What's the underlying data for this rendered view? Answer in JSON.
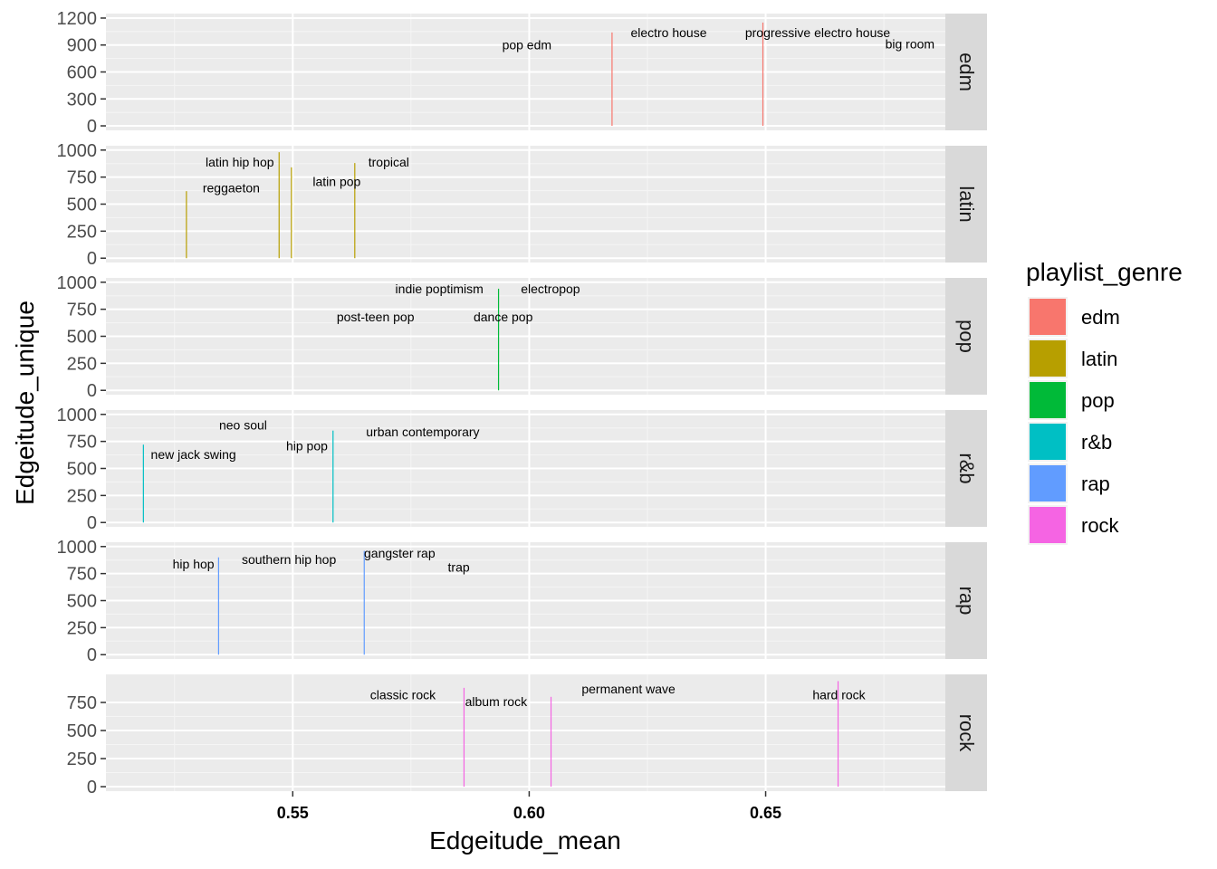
{
  "chart_data": {
    "type": "bar",
    "xlabel": "Edgeitude_mean",
    "ylabel": "Edgeitude_unique",
    "xlim": [
      0.5105,
      0.688
    ],
    "x_ticks": [
      0.55,
      0.6,
      0.65
    ],
    "x_tick_labels": [
      "0.55",
      "0.60",
      "0.65"
    ],
    "facet_by": "playlist_genre",
    "legend": {
      "title": "playlist_genre",
      "position": "right",
      "entries": [
        {
          "label": "edm",
          "color": "#F8766D"
        },
        {
          "label": "latin",
          "color": "#B79F00"
        },
        {
          "label": "pop",
          "color": "#00BA38"
        },
        {
          "label": "r&b",
          "color": "#00BFC4"
        },
        {
          "label": "rap",
          "color": "#619CFF"
        },
        {
          "label": "rock",
          "color": "#F564E3"
        }
      ]
    },
    "panels": [
      {
        "strip": "edm",
        "color": "#F8766D",
        "ylim": [
          -50,
          1250
        ],
        "y_ticks": [
          0,
          300,
          600,
          900,
          1200
        ],
        "bars": [
          {
            "x": 0.6175,
            "y": 1040
          },
          {
            "x": 0.6494,
            "y": 1150
          }
        ],
        "labels": [
          {
            "text": "electro house",
            "x": 0.6295,
            "y": 1040
          },
          {
            "text": "progressive electro house",
            "x": 0.661,
            "y": 1040
          },
          {
            "text": "pop edm",
            "x": 0.5995,
            "y": 900
          },
          {
            "text": "big room",
            "x": 0.6805,
            "y": 910
          }
        ]
      },
      {
        "strip": "latin",
        "color": "#B79F00",
        "ylim": [
          -40,
          1040
        ],
        "y_ticks": [
          0,
          250,
          500,
          750,
          1000
        ],
        "bars": [
          {
            "x": 0.5275,
            "y": 620
          },
          {
            "x": 0.5471,
            "y": 980
          },
          {
            "x": 0.5497,
            "y": 840
          },
          {
            "x": 0.5631,
            "y": 880
          }
        ],
        "labels": [
          {
            "text": "latin hip hop",
            "x": 0.5388,
            "y": 890
          },
          {
            "text": "reggaeton",
            "x": 0.537,
            "y": 650
          },
          {
            "text": "latin pop",
            "x": 0.5593,
            "y": 710
          },
          {
            "text": "tropical",
            "x": 0.5703,
            "y": 890
          }
        ]
      },
      {
        "strip": "pop",
        "color": "#00BA38",
        "ylim": [
          -40,
          1040
        ],
        "y_ticks": [
          0,
          250,
          500,
          750,
          1000
        ],
        "bars": [
          {
            "x": 0.5935,
            "y": 940
          }
        ],
        "labels": [
          {
            "text": "indie poptimism",
            "x": 0.581,
            "y": 940
          },
          {
            "text": "electropop",
            "x": 0.6045,
            "y": 940
          },
          {
            "text": "post-teen pop",
            "x": 0.5675,
            "y": 680
          },
          {
            "text": "dance pop",
            "x": 0.5945,
            "y": 680
          }
        ]
      },
      {
        "strip": "r&b",
        "color": "#00BFC4",
        "ylim": [
          -40,
          1040
        ],
        "y_ticks": [
          0,
          250,
          500,
          750,
          1000
        ],
        "bars": [
          {
            "x": 0.5184,
            "y": 720
          },
          {
            "x": 0.5585,
            "y": 850
          }
        ],
        "labels": [
          {
            "text": "neo soul",
            "x": 0.5395,
            "y": 900
          },
          {
            "text": "urban contemporary",
            "x": 0.5775,
            "y": 840
          },
          {
            "text": "hip pop",
            "x": 0.553,
            "y": 710
          },
          {
            "text": "new jack swing",
            "x": 0.529,
            "y": 630
          }
        ]
      },
      {
        "strip": "rap",
        "color": "#619CFF",
        "ylim": [
          -40,
          1040
        ],
        "y_ticks": [
          0,
          250,
          500,
          750,
          1000
        ],
        "bars": [
          {
            "x": 0.5343,
            "y": 900
          },
          {
            "x": 0.5651,
            "y": 960
          }
        ],
        "labels": [
          {
            "text": "hip hop",
            "x": 0.529,
            "y": 840
          },
          {
            "text": "southern hip hop",
            "x": 0.5492,
            "y": 880
          },
          {
            "text": "gangster rap",
            "x": 0.5726,
            "y": 940
          },
          {
            "text": "trap",
            "x": 0.5851,
            "y": 810
          }
        ]
      },
      {
        "strip": "rock",
        "color": "#F564E3",
        "ylim": [
          -40,
          1000
        ],
        "y_ticks": [
          0,
          250,
          500,
          750
        ],
        "bars": [
          {
            "x": 0.5862,
            "y": 880
          },
          {
            "x": 0.6046,
            "y": 800
          },
          {
            "x": 0.6653,
            "y": 940
          }
        ],
        "labels": [
          {
            "text": "classic rock",
            "x": 0.5733,
            "y": 820
          },
          {
            "text": "album rock",
            "x": 0.593,
            "y": 760
          },
          {
            "text": "permanent wave",
            "x": 0.621,
            "y": 870
          },
          {
            "text": "hard rock",
            "x": 0.6655,
            "y": 820
          }
        ]
      }
    ]
  }
}
